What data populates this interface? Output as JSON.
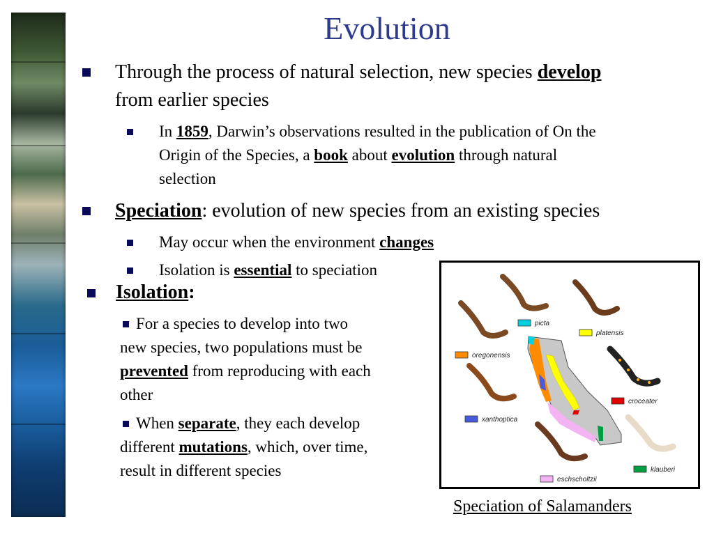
{
  "slide": {
    "title": "Evolution",
    "bullet1": {
      "pre": "Through the process of natural selection, new species ",
      "em": "develop",
      "post": "from earlier species"
    },
    "sub1": {
      "a": "In ",
      "year": "1859",
      "b": ", Darwin’s observations resulted in the publication of On the",
      "c": "Origin of the Species, a ",
      "book": "book",
      "d": " about ",
      "evolution": "evolution",
      "e": " through natural",
      "f": "selection"
    },
    "bullet2": {
      "term": "Speciation",
      "rest": ": evolution of new species from an existing species"
    },
    "sub2": {
      "a": "May occur when the environment ",
      "changes": "changes"
    },
    "sub3": {
      "a": "Isolation is ",
      "essential": "essential",
      "b": " to speciation"
    },
    "bullet3": {
      "term": "Isolation",
      "colon": ":"
    },
    "iso1": {
      "l1": "For a species to develop into two",
      "l2": "new species, two populations must be",
      "prevented": "prevented",
      "l3b": " from reproducing with each",
      "l4": "other"
    },
    "iso2": {
      "a": "When ",
      "separate": "separate",
      "b": ", they each develop",
      "c": "different ",
      "mutations": "mutations",
      "d": ", which, over time,",
      "e": "result in different species"
    },
    "caption": "Speciation of Salamanders"
  },
  "figure": {
    "legend": [
      {
        "label": "picta",
        "color": "#00d0e0"
      },
      {
        "label": "platensis",
        "color": "#ffff00"
      },
      {
        "label": "oregonensis",
        "color": "#ff8c00"
      },
      {
        "label": "croceater",
        "color": "#e00000"
      },
      {
        "label": "xanthoptica",
        "color": "#4a5adc"
      },
      {
        "label": "klauberi",
        "color": "#00a040"
      },
      {
        "label": "eschscholtzii",
        "color": "#f4b4f4"
      }
    ]
  }
}
